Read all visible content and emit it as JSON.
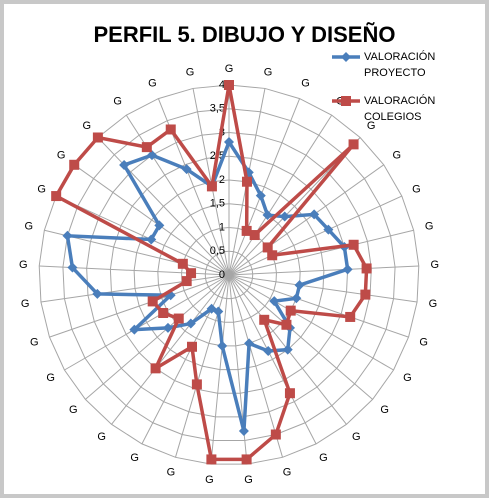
{
  "chart_data": {
    "type": "radar",
    "title": "PERFIL 5. DIBUJO Y DISEÑO",
    "categories": [
      "G",
      "G",
      "G",
      "G",
      "G",
      "G",
      "G",
      "G",
      "G",
      "G",
      "G",
      "G",
      "G",
      "G",
      "G",
      "G",
      "G",
      "G",
      "G",
      "G",
      "G",
      "G",
      "G",
      "G",
      "G",
      "G",
      "G",
      "G",
      "G",
      "G",
      "G",
      "G",
      "G"
    ],
    "ylim": [
      0,
      4
    ],
    "yticks": [
      0,
      {
        "value": 0.5,
        "label": "0,5"
      },
      1,
      {
        "value": 1.5,
        "label": "1,5"
      },
      2,
      {
        "value": 2.5,
        "label": "2,5"
      },
      3,
      {
        "value": 3.5,
        "label": "3,5"
      },
      4
    ],
    "grid": true,
    "series": [
      {
        "name": "VALORACIÓN PROYECTO",
        "color": "#4a7ebb",
        "marker": "diamond",
        "values": [
          2.8,
          2.2,
          1.8,
          1.5,
          1.7,
          2.2,
          2.3,
          2.5,
          2.5,
          1.5,
          1.5,
          1.1,
          1.7,
          2.0,
          1.8,
          1.5,
          3.3,
          1.5,
          0.8,
          0.8,
          1.3,
          1.7,
          2.3,
          1.3,
          2.8,
          3.3,
          3.5,
          1.8,
          1.8,
          3.2,
          3.0,
          2.4,
          1.9
        ]
      },
      {
        "name": "VALORACIÓN COLEGIOS",
        "color": "#be4b48",
        "marker": "square",
        "values": [
          4.0,
          2.0,
          1.0,
          1.0,
          3.8,
          1.0,
          1.0,
          2.7,
          2.9,
          2.9,
          2.7,
          1.5,
          1.6,
          1.2,
          2.8,
          3.5,
          3.9,
          3.9,
          2.4,
          1.7,
          2.5,
          1.4,
          1.6,
          1.7,
          0.9,
          0.8,
          1.0,
          4.0,
          4.0,
          4.0,
          3.2,
          3.3,
          1.9
        ]
      }
    ]
  }
}
